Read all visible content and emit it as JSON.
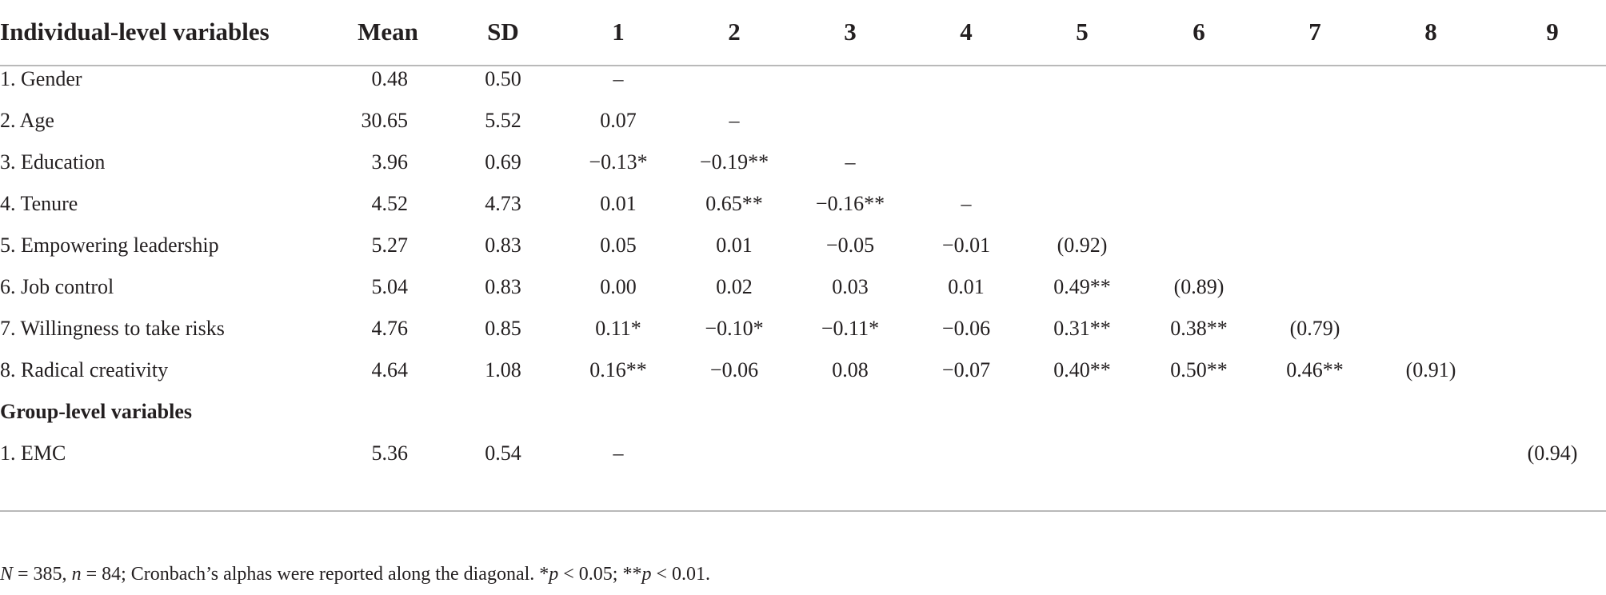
{
  "table": {
    "columns": [
      "Individual-level variables",
      "Mean",
      "SD",
      "1",
      "2",
      "3",
      "4",
      "5",
      "6",
      "7",
      "8",
      "9"
    ],
    "rows": [
      {
        "label": "1. Gender",
        "mean": "0.48",
        "sd": "0.50",
        "c": [
          "–",
          "",
          "",
          "",
          "",
          "",
          "",
          "",
          ""
        ]
      },
      {
        "label": "2. Age",
        "mean": "30.65",
        "sd": "5.52",
        "c": [
          "0.07",
          "–",
          "",
          "",
          "",
          "",
          "",
          "",
          ""
        ]
      },
      {
        "label": "3. Education",
        "mean": "3.96",
        "sd": "0.69",
        "c": [
          "−0.13*",
          "−0.19**",
          "–",
          "",
          "",
          "",
          "",
          "",
          ""
        ]
      },
      {
        "label": "4. Tenure",
        "mean": "4.52",
        "sd": "4.73",
        "c": [
          "0.01",
          "0.65**",
          "−0.16**",
          "–",
          "",
          "",
          "",
          "",
          ""
        ]
      },
      {
        "label": "5. Empowering leadership",
        "mean": "5.27",
        "sd": "0.83",
        "c": [
          "0.05",
          "0.01",
          "−0.05",
          "−0.01",
          "(0.92)",
          "",
          "",
          "",
          ""
        ]
      },
      {
        "label": "6. Job control",
        "mean": "5.04",
        "sd": "0.83",
        "c": [
          "0.00",
          "0.02",
          "0.03",
          "0.01",
          "0.49**",
          "(0.89)",
          "",
          "",
          ""
        ]
      },
      {
        "label": "7. Willingness to take risks",
        "mean": "4.76",
        "sd": "0.85",
        "c": [
          "0.11*",
          "−0.10*",
          "−0.11*",
          "−0.06",
          "0.31**",
          "0.38**",
          "(0.79)",
          "",
          ""
        ]
      },
      {
        "label": "8. Radical creativity",
        "mean": "4.64",
        "sd": "1.08",
        "c": [
          "0.16**",
          "−0.06",
          "0.08",
          "−0.07",
          "0.40**",
          "0.50**",
          "0.46**",
          "(0.91)",
          ""
        ]
      }
    ],
    "group_heading": "Group-level variables",
    "group_rows": [
      {
        "label": "1. EMC",
        "mean": "5.36",
        "sd": "0.54",
        "c": [
          "–",
          "",
          "",
          "",
          "",
          "",
          "",
          "",
          "(0.94)"
        ]
      }
    ]
  },
  "note": {
    "N_sym": "N",
    "N_text": " = 385, ",
    "n_sym": "n",
    "n_text": " = 84; Cronbach’s alphas were reported along the diagonal. *",
    "p1_sym": "p",
    "p1_text": " < 0.05; **",
    "p2_sym": "p",
    "p2_text": " < 0.01."
  }
}
